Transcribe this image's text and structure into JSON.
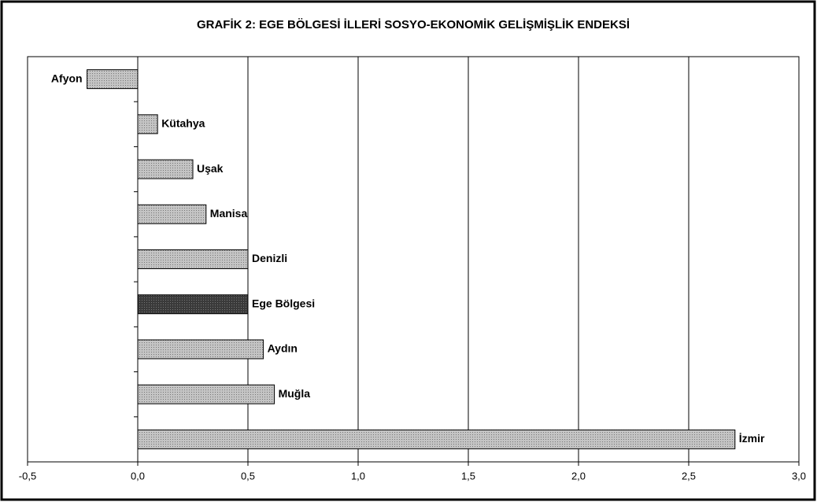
{
  "chart_data": {
    "type": "barh",
    "title": "GRAFİK 2: EGE BÖLGESİ İLLERİ SOSYO-EKONOMİK GELİŞMİŞLİK ENDEKSİ",
    "categories": [
      "Afyon",
      "Kütahya",
      "Uşak",
      "Manisa",
      "Denizli",
      "Ege Bölgesi",
      "Aydın",
      "Muğla",
      "İzmir"
    ],
    "values": [
      -0.23,
      0.09,
      0.25,
      0.31,
      0.5,
      0.5,
      0.57,
      0.62,
      2.71
    ],
    "colors": [
      "#c4c4c4",
      "#c4c4c4",
      "#c4c4c4",
      "#c4c4c4",
      "#c4c4c4",
      "#3a3a3a",
      "#c4c4c4",
      "#c4c4c4",
      "#c4c4c4"
    ],
    "xlim": [
      -0.5,
      3.0
    ],
    "xticks": [
      {
        "value": -0.5,
        "label": "-0,5"
      },
      {
        "value": 0,
        "label": "0,0"
      },
      {
        "value": 0.5,
        "label": "0,5"
      },
      {
        "value": 1.0,
        "label": "1,0"
      },
      {
        "value": 1.5,
        "label": "1,5"
      },
      {
        "value": 2.0,
        "label": "2,0"
      },
      {
        "value": 2.5,
        "label": "2,5"
      },
      {
        "value": 3.0,
        "label": "3,0"
      }
    ],
    "grid": true
  }
}
